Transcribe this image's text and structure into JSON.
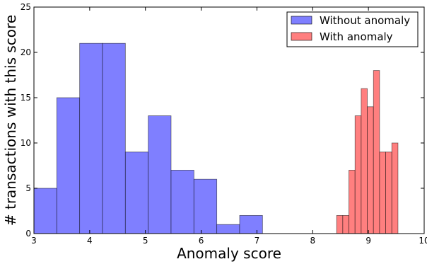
{
  "chart_data": {
    "type": "bar",
    "title": "",
    "xlabel": "Anomaly score",
    "ylabel": "# transactions with this score",
    "xlim": [
      3,
      10
    ],
    "ylim": [
      0,
      25
    ],
    "x_ticks": [
      3,
      4,
      5,
      6,
      7,
      8,
      9,
      10
    ],
    "y_ticks": [
      0,
      5,
      10,
      15,
      20,
      25
    ],
    "grid": false,
    "legend_position": "top-right",
    "series": [
      {
        "name": "Without anomaly",
        "color": "#7f7fff",
        "bins": [
          {
            "x0": 3.0,
            "x1": 3.41,
            "count": 5
          },
          {
            "x0": 3.41,
            "x1": 3.82,
            "count": 15
          },
          {
            "x0": 3.82,
            "x1": 4.23,
            "count": 21
          },
          {
            "x0": 4.23,
            "x1": 4.64,
            "count": 21
          },
          {
            "x0": 4.64,
            "x1": 5.05,
            "count": 9
          },
          {
            "x0": 5.05,
            "x1": 5.46,
            "count": 13
          },
          {
            "x0": 5.46,
            "x1": 5.87,
            "count": 7
          },
          {
            "x0": 5.87,
            "x1": 6.28,
            "count": 6
          },
          {
            "x0": 6.28,
            "x1": 6.69,
            "count": 1
          },
          {
            "x0": 6.69,
            "x1": 7.1,
            "count": 2
          }
        ]
      },
      {
        "name": "With anomaly",
        "color": "#ff7f7f",
        "bins": [
          {
            "x0": 8.43,
            "x1": 8.54,
            "count": 2
          },
          {
            "x0": 8.54,
            "x1": 8.65,
            "count": 2
          },
          {
            "x0": 8.65,
            "x1": 8.76,
            "count": 7
          },
          {
            "x0": 8.76,
            "x1": 8.87,
            "count": 13
          },
          {
            "x0": 8.87,
            "x1": 8.98,
            "count": 16
          },
          {
            "x0": 8.98,
            "x1": 9.09,
            "count": 14
          },
          {
            "x0": 9.09,
            "x1": 9.2,
            "count": 18
          },
          {
            "x0": 9.2,
            "x1": 9.31,
            "count": 9
          },
          {
            "x0": 9.31,
            "x1": 9.42,
            "count": 9
          },
          {
            "x0": 9.42,
            "x1": 9.53,
            "count": 10
          }
        ]
      }
    ]
  }
}
